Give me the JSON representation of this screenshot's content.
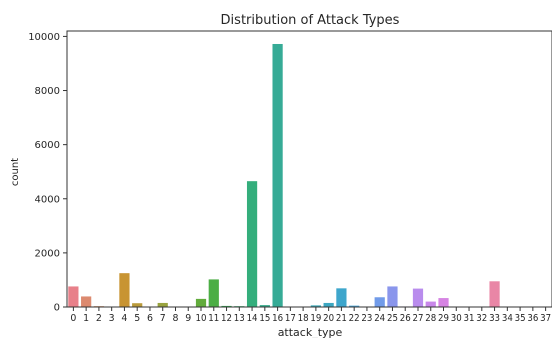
{
  "chart_data": {
    "type": "bar",
    "title": "Distribution of Attack Types",
    "xlabel": "attack_type",
    "ylabel": "count",
    "ylim": [
      0,
      10200
    ],
    "yticks": [
      0,
      2000,
      4000,
      6000,
      8000,
      10000
    ],
    "grid": false,
    "legend": "none",
    "categories": [
      "0",
      "1",
      "2",
      "3",
      "4",
      "5",
      "6",
      "7",
      "8",
      "9",
      "10",
      "11",
      "12",
      "13",
      "14",
      "15",
      "16",
      "17",
      "18",
      "19",
      "20",
      "21",
      "22",
      "23",
      "24",
      "25",
      "26",
      "27",
      "28",
      "29",
      "30",
      "31",
      "32",
      "33",
      "34",
      "35",
      "36",
      "37"
    ],
    "values": [
      760,
      390,
      30,
      10,
      1250,
      140,
      15,
      150,
      10,
      5,
      300,
      1020,
      40,
      30,
      4650,
      70,
      9720,
      5,
      5,
      60,
      150,
      690,
      50,
      15,
      360,
      760,
      20,
      680,
      200,
      330,
      5,
      5,
      10,
      950,
      5,
      5,
      5,
      5
    ],
    "colors": [
      "#e8808a",
      "#dc8a6f",
      "#d99064",
      "#d1943f",
      "#c89432",
      "#b99a3a",
      "#a69f42",
      "#99a33e",
      "#89a63a",
      "#77aa3a",
      "#62ac3c",
      "#4cae45",
      "#39ae54",
      "#33ae69",
      "#34ae7c",
      "#35ac8b",
      "#36ab96",
      "#37aaa2",
      "#39a9ad",
      "#3aa8b7",
      "#3ca7c1",
      "#3ea6cc",
      "#44a3d7",
      "#5ba0e3",
      "#719be9",
      "#8a96ec",
      "#a591ef",
      "#b98ced",
      "#c987ea",
      "#d684e3",
      "#e181d7",
      "#e881c9",
      "#ea83b8",
      "#e986a6",
      "#e88892",
      "#e8898a",
      "#e8898a",
      "#e8898a"
    ]
  }
}
